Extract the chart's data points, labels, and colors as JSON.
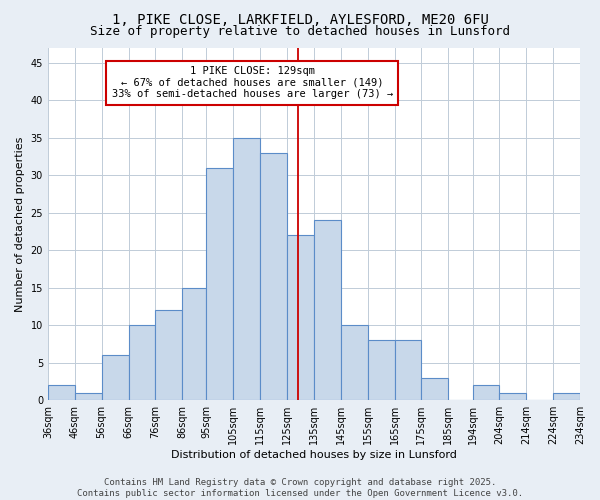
{
  "title_line1": "1, PIKE CLOSE, LARKFIELD, AYLESFORD, ME20 6FU",
  "title_line2": "Size of property relative to detached houses in Lunsford",
  "xlabel": "Distribution of detached houses by size in Lunsford",
  "ylabel": "Number of detached properties",
  "bin_labels": [
    "36sqm",
    "46sqm",
    "56sqm",
    "66sqm",
    "76sqm",
    "86sqm",
    "95sqm",
    "105sqm",
    "115sqm",
    "125sqm",
    "135sqm",
    "145sqm",
    "155sqm",
    "165sqm",
    "175sqm",
    "185sqm",
    "194sqm",
    "204sqm",
    "214sqm",
    "224sqm",
    "234sqm"
  ],
  "bin_edges": [
    36,
    46,
    56,
    66,
    76,
    86,
    95,
    105,
    115,
    125,
    135,
    145,
    155,
    165,
    175,
    185,
    194,
    204,
    214,
    224,
    234
  ],
  "bar_heights": [
    2,
    1,
    6,
    10,
    12,
    15,
    31,
    35,
    33,
    22,
    24,
    10,
    8,
    8,
    3,
    0,
    2,
    1,
    0,
    1
  ],
  "bar_color": "#c8d8ea",
  "bar_edge_color": "#5b8cc8",
  "property_value": 129,
  "vline_color": "#cc0000",
  "annotation_text": "1 PIKE CLOSE: 129sqm\n← 67% of detached houses are smaller (149)\n33% of semi-detached houses are larger (73) →",
  "annotation_box_color": "#ffffff",
  "annotation_box_edge": "#cc0000",
  "ylim": [
    0,
    47
  ],
  "yticks": [
    0,
    5,
    10,
    15,
    20,
    25,
    30,
    35,
    40,
    45
  ],
  "grid_color": "#c0ccd8",
  "plot_bg_color": "#ffffff",
  "fig_bg_color": "#e8eef5",
  "footer_text": "Contains HM Land Registry data © Crown copyright and database right 2025.\nContains public sector information licensed under the Open Government Licence v3.0.",
  "title_fontsize": 10,
  "subtitle_fontsize": 9,
  "axis_label_fontsize": 8,
  "tick_fontsize": 7,
  "annotation_fontsize": 7.5,
  "footer_fontsize": 6.5
}
